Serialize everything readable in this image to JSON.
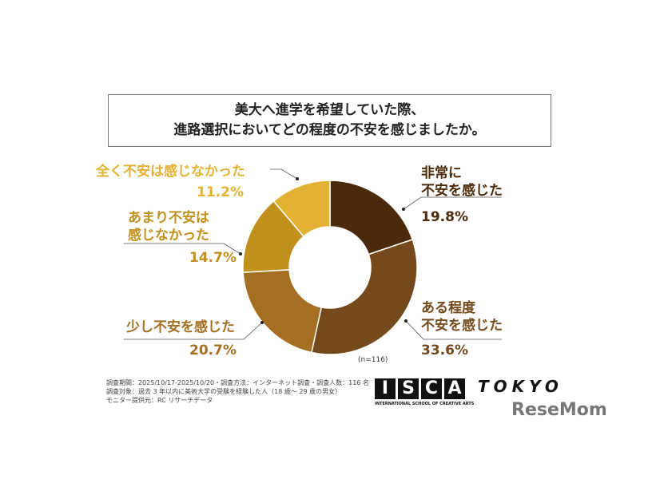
{
  "chart_data": {
    "type": "pie",
    "variant": "donut",
    "title": "美大へ進学を希望していた際、\n進路選択においてどの程度の不安を感じましたか。",
    "categories": [
      "非常に不安を感じた",
      "ある程度不安を感じた",
      "少し不安を感じた",
      "あまり不安は感じなかった",
      "全く不安は感じなかった"
    ],
    "values": [
      19.8,
      33.6,
      20.7,
      14.7,
      11.2
    ],
    "value_labels": [
      "19.8%",
      "33.6%",
      "20.7%",
      "14.7%",
      "11.2%"
    ],
    "colors": [
      "#4b2a0b",
      "#744a1c",
      "#a46f22",
      "#c2901c",
      "#e4b233"
    ],
    "sample": "(n=116)"
  },
  "labels": {
    "l0": [
      "非常に",
      "不安を感じた"
    ],
    "l1": [
      "ある程度",
      "不安を感じた"
    ],
    "l2": [
      "少し不安を感じた"
    ],
    "l3": [
      "あまり不安は",
      "感じなかった"
    ],
    "l4": [
      "全く不安は感じなかった"
    ]
  },
  "footer": [
    "調査期間：2025/10/17-2025/10/20・調査方法：インターネット調査・調査人数：116 名",
    "調査対象：過去 3 年以内に美術大学の受験を経験した人（18 歳～ 29 歳の男女）",
    "モニター提供元：RC リサーチデータ"
  ],
  "logo": {
    "letters": [
      "I",
      "S",
      "C",
      "A"
    ],
    "tokyo": "TOKYO",
    "sub": "INTERNATIONAL SCHOOL OF CREATIVE ARTS",
    "resemom": "ReseMom"
  }
}
